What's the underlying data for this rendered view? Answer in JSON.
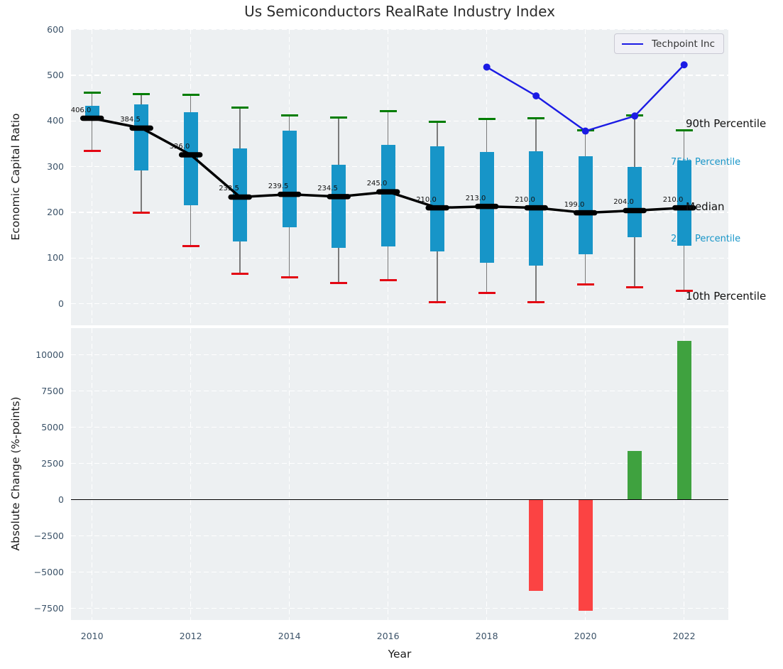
{
  "title": "Us Semiconductors RealRate Industry Index",
  "legend": {
    "label": "Techpoint Inc"
  },
  "axes": {
    "top_ylabel": "Economic Capital Ratio",
    "bottom_ylabel": "Absolute Change (%-points)",
    "xlabel": "Year"
  },
  "chart_data": [
    {
      "type": "boxplot+line",
      "panel": "top",
      "title": "Us Semiconductors RealRate Industry Index",
      "ylabel": "Economic Capital Ratio",
      "ylim": [
        -48,
        600
      ],
      "yticks": [
        0,
        100,
        200,
        300,
        400,
        500,
        600
      ],
      "xticks": [
        2010,
        2012,
        2014,
        2016,
        2018,
        2020,
        2022
      ],
      "grid": true,
      "legend_position": "upper right",
      "years": [
        2010,
        2011,
        2012,
        2013,
        2014,
        2015,
        2016,
        2017,
        2018,
        2019,
        2020,
        2021,
        2022
      ],
      "p10": [
        335,
        200,
        126,
        65,
        58,
        46,
        52,
        3,
        24,
        3,
        43,
        36,
        28
      ],
      "p25": [
        403,
        291,
        216,
        136,
        167,
        123,
        126,
        115,
        90,
        83,
        108,
        146,
        127
      ],
      "median": [
        406.0,
        384.5,
        326.0,
        233.5,
        239.5,
        234.5,
        245.0,
        210.0,
        213.0,
        210.0,
        199.0,
        204.0,
        210.0
      ],
      "p75": [
        433,
        437,
        419,
        340,
        379,
        304,
        348,
        344,
        332,
        333,
        323,
        299,
        313
      ],
      "p90": [
        462,
        459,
        458,
        430,
        413,
        407,
        421,
        399,
        404,
        406,
        380,
        413,
        379
      ],
      "median_labels": [
        "406.0",
        "384.5",
        "326.0",
        "233.5",
        "239.5",
        "234.5",
        "245.0",
        "210.0",
        "213.0",
        "210.0",
        "199.0",
        "204.0",
        "210.0"
      ],
      "line_series": {
        "name": "Techpoint Inc",
        "years": [
          2018,
          2019,
          2020,
          2021,
          2022
        ],
        "values": [
          518,
          455,
          378,
          411,
          523
        ]
      },
      "side_labels": [
        {
          "text": "90th Percentile",
          "style": "black",
          "y": 393
        },
        {
          "text": "75th Percentile",
          "style": "cyan",
          "y": 307
        },
        {
          "text": "Median",
          "style": "black",
          "y": 211
        },
        {
          "text": "25th Percentile",
          "style": "cyan",
          "y": 139
        },
        {
          "text": "10th Percentile",
          "style": "black",
          "y": 15
        }
      ],
      "colors": {
        "box": "#1795c8",
        "whisker": "#7a7a7a",
        "cap_high": "#007d00",
        "cap_low": "#e30613",
        "median_line": "#000000",
        "company_line": "#1b1be4"
      }
    },
    {
      "type": "bar",
      "panel": "bottom",
      "ylabel": "Absolute Change (%-points)",
      "xlabel": "Year",
      "ylim": [
        -8300,
        11900
      ],
      "yticks": [
        -7500,
        -5000,
        -2500,
        0,
        2500,
        5000,
        7500,
        10000
      ],
      "ytick_labels": [
        "−7500",
        "−5000",
        "−2500",
        "0",
        "2500",
        "5000",
        "7500",
        "10000"
      ],
      "xticks": [
        2010,
        2012,
        2014,
        2016,
        2018,
        2020,
        2022
      ],
      "xtick_labels": [
        "2010",
        "2012",
        "2014",
        "2016",
        "2018",
        "2020",
        "2022"
      ],
      "grid": true,
      "zero_line": true,
      "years": [
        2019,
        2020,
        2021,
        2022
      ],
      "values": [
        -6300,
        -7650,
        3350,
        10980
      ],
      "colors": {
        "positive": "#3fa23f",
        "negative": "#fb4343"
      }
    }
  ]
}
